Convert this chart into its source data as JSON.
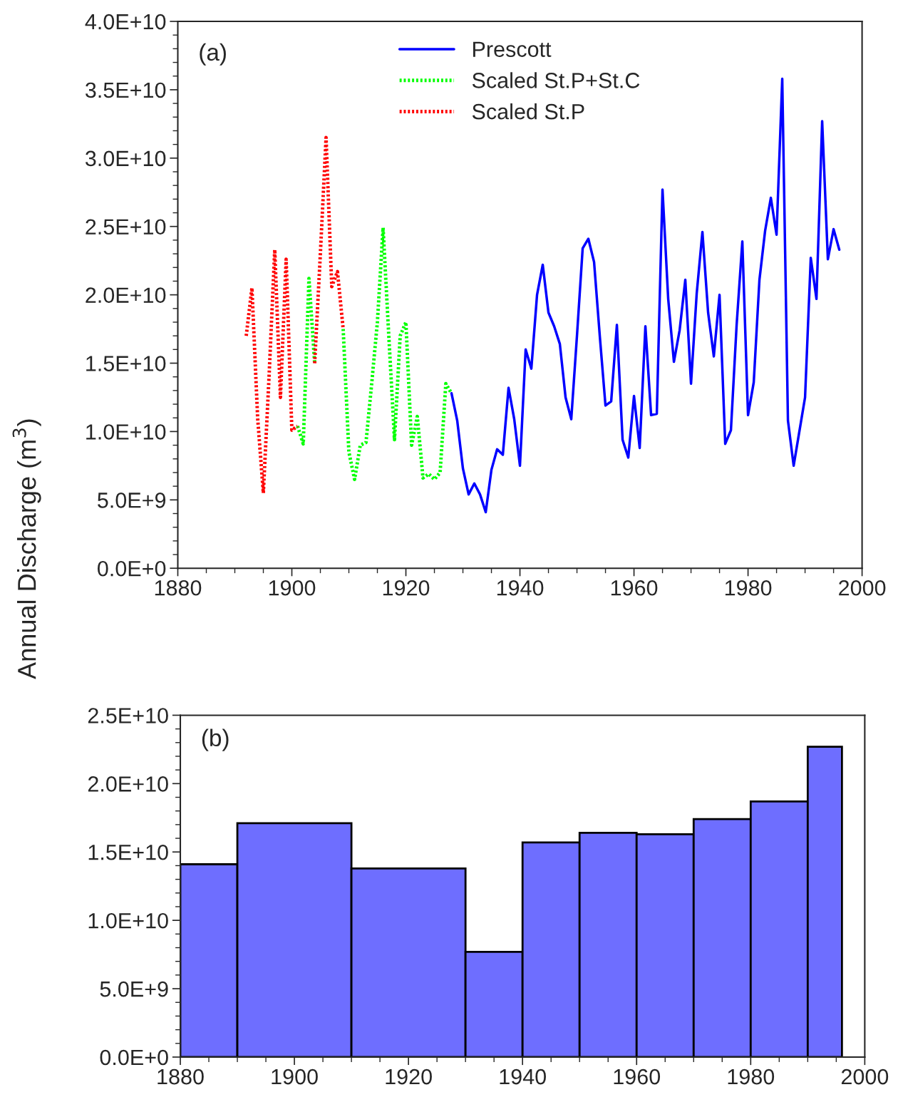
{
  "chart_data": [
    {
      "type": "line",
      "annotations": [
        "(a)"
      ],
      "ylabel": "Annual Discharge (m$^{3}$)",
      "series": [
        {
          "name": "Prescott",
          "color": "#0000ff",
          "line_style": "solid",
          "x": [
            1928,
            1929,
            1930,
            1931,
            1932,
            1933,
            1934,
            1935,
            1936,
            1937,
            1938,
            1939,
            1940,
            1941,
            1942,
            1943,
            1944,
            1945,
            1946,
            1947,
            1948,
            1949,
            1950,
            1951,
            1952,
            1953,
            1954,
            1955,
            1956,
            1957,
            1958,
            1959,
            1960,
            1961,
            1962,
            1963,
            1964,
            1965,
            1966,
            1967,
            1968,
            1969,
            1970,
            1971,
            1972,
            1973,
            1974,
            1975,
            1976,
            1977,
            1978,
            1979,
            1980,
            1981,
            1982,
            1983,
            1984,
            1985,
            1986,
            1987,
            1988,
            1989,
            1990,
            1991,
            1992,
            1993,
            1994,
            1995,
            1996
          ],
          "values": [
            12800000000.0,
            10800000000.0,
            7300000000.0,
            5400000000.0,
            6200000000.0,
            5400000000.0,
            4100000000.0,
            7200000000.0,
            8700000000.0,
            8300000000.0,
            13200000000.0,
            10900000000.0,
            7500000000.0,
            16000000000.0,
            14600000000.0,
            20000000000.0,
            22200000000.0,
            18700000000.0,
            17700000000.0,
            16400000000.0,
            12500000000.0,
            10900000000.0,
            17000000000.0,
            23400000000.0,
            24100000000.0,
            22400000000.0,
            17000000000.0,
            11900000000.0,
            12200000000.0,
            17800000000.0,
            9400000000.0,
            8100000000.0,
            12600000000.0,
            8800000000.0,
            17700000000.0,
            11200000000.0,
            11300000000.0,
            27700000000.0,
            19700000000.0,
            15100000000.0,
            17400000000.0,
            21100000000.0,
            13500000000.0,
            20100000000.0,
            24600000000.0,
            18700000000.0,
            15500000000.0,
            20000000000.0,
            9100000000.0,
            10100000000.0,
            17800000000.0,
            23900000000.0,
            11200000000.0,
            13600000000.0,
            21100000000.0,
            24700000000.0,
            27100000000.0,
            24400000000.0,
            35800000000.0,
            10800000000.0,
            7500000000.0,
            10000000000.0,
            12500000000.0,
            22700000000.0,
            19700000000.0,
            32700000000.0,
            22600000000.0,
            24800000000.0,
            23300000000.0
          ]
        },
        {
          "name": "Scaled St.P+St.C",
          "color": "#00ff00",
          "line_style": "dotted",
          "x": [
            1901,
            1902,
            1903,
            1904,
            1905,
            1906,
            1907,
            1908,
            1909,
            1910,
            1911,
            1912,
            1913,
            1914,
            1915,
            1916,
            1917,
            1918,
            1919,
            1920,
            1921,
            1922,
            1923,
            1924,
            1925,
            1926,
            1927,
            1928
          ],
          "values": [
            10400000000.0,
            9100000000.0,
            21200000000.0,
            15000000000.0,
            null,
            null,
            null,
            null,
            17500000000.0,
            8500000000.0,
            6500000000.0,
            9000000000.0,
            9200000000.0,
            13500000000.0,
            18000000000.0,
            24900000000.0,
            17000000000.0,
            9400000000.0,
            17000000000.0,
            18000000000.0,
            9000000000.0,
            11100000000.0,
            6600000000.0,
            6900000000.0,
            6500000000.0,
            7000000000.0,
            13500000000.0,
            12800000000.0
          ]
        },
        {
          "name": "Scaled St.P",
          "color": "#ff0000",
          "line_style": "dotted",
          "x": [
            1892,
            1893,
            1894,
            1895,
            1896,
            1897,
            1898,
            1899,
            1900,
            1901,
            1902,
            1903,
            1904,
            1905,
            1906,
            1907,
            1908,
            1909
          ],
          "values": [
            17000000000.0,
            20500000000.0,
            11000000000.0,
            5500000000.0,
            14000000000.0,
            23300000000.0,
            12500000000.0,
            22600000000.0,
            10100000000.0,
            10400000000.0,
            null,
            null,
            15000000000.0,
            23000000000.0,
            31500000000.0,
            20600000000.0,
            21700000000.0,
            17500000000.0
          ]
        }
      ],
      "xlim": [
        1880,
        2000
      ],
      "xticks": [
        1880,
        1900,
        1920,
        1940,
        1960,
        1980,
        2000
      ],
      "ylim": [
        0,
        40000000000.0
      ],
      "yticks": [
        {
          "value": 0,
          "label": "0.0E+0"
        },
        {
          "value": 5000000000.0,
          "label": "5.0E+9"
        },
        {
          "value": 10000000000.0,
          "label": "1.0E+10"
        },
        {
          "value": 15000000000.0,
          "label": "1.5E+10"
        },
        {
          "value": 20000000000.0,
          "label": "2.0E+10"
        },
        {
          "value": 25000000000.0,
          "label": "2.5E+10"
        },
        {
          "value": 30000000000.0,
          "label": "3.0E+10"
        },
        {
          "value": 35000000000.0,
          "label": "3.5E+10"
        },
        {
          "value": 40000000000.0,
          "label": "4.0E+10"
        }
      ],
      "grid": false,
      "legend": "top"
    },
    {
      "type": "histogram",
      "annotations": [
        "(b)"
      ],
      "color": "#6e6eff",
      "bins": [
        1880,
        1890,
        1910,
        1930,
        1940,
        1950,
        1960,
        1970,
        1980,
        1990,
        1996
      ],
      "values": [
        14100000000.0,
        17100000000.0,
        13800000000.0,
        7700000000.0,
        15700000000.0,
        16400000000.0,
        16300000000.0,
        17400000000.0,
        18700000000.0,
        22700000000.0
      ],
      "xlim": [
        1880,
        2000
      ],
      "xticks": [
        1880,
        1900,
        1920,
        1940,
        1960,
        1980,
        2000
      ],
      "ylim": [
        0,
        25000000000.0
      ],
      "yticks": [
        {
          "value": 0,
          "label": "0.0E+0"
        },
        {
          "value": 5000000000.0,
          "label": "5.0E+9"
        },
        {
          "value": 10000000000.0,
          "label": "1.0E+10"
        },
        {
          "value": 15000000000.0,
          "label": "1.5E+10"
        },
        {
          "value": 20000000000.0,
          "label": "2.0E+10"
        },
        {
          "value": 25000000000.0,
          "label": "2.5E+10"
        }
      ],
      "grid": false,
      "legend": false
    }
  ]
}
